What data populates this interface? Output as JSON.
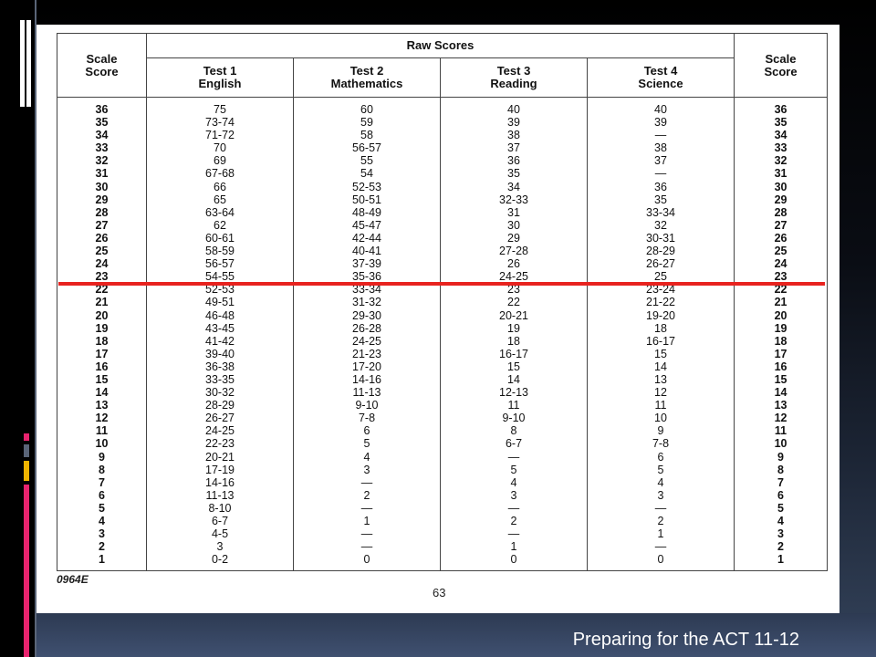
{
  "slide": {
    "footer_title": "Preparing for the ACT 11-12",
    "accent_colors": [
      "#e8236e",
      "#5a6578",
      "#f0b400",
      "#e8236e"
    ],
    "highlight_color": "#e8231f"
  },
  "table": {
    "group_header": "Raw Scores",
    "headers": {
      "scale_left": [
        "Scale",
        "Score"
      ],
      "test1": [
        "Test 1",
        "English"
      ],
      "test2": [
        "Test 2",
        "Mathematics"
      ],
      "test3": [
        "Test 3",
        "Reading"
      ],
      "test4": [
        "Test 4",
        "Science"
      ],
      "scale_right": [
        "Scale",
        "Score"
      ]
    },
    "scale": [
      "36",
      "35",
      "34",
      "33",
      "32",
      "31",
      "30",
      "29",
      "28",
      "27",
      "26",
      "25",
      "24",
      "23",
      "22",
      "21",
      "20",
      "19",
      "18",
      "17",
      "16",
      "15",
      "14",
      "13",
      "12",
      "11",
      "10",
      "9",
      "8",
      "7",
      "6",
      "5",
      "4",
      "3",
      "2",
      "1"
    ],
    "english": [
      "75",
      "73-74",
      "71-72",
      "70",
      "69",
      "67-68",
      "66",
      "65",
      "63-64",
      "62",
      "60-61",
      "58-59",
      "56-57",
      "54-55",
      "52-53",
      "49-51",
      "46-48",
      "43-45",
      "41-42",
      "39-40",
      "36-38",
      "33-35",
      "30-32",
      "28-29",
      "26-27",
      "24-25",
      "22-23",
      "20-21",
      "17-19",
      "14-16",
      "11-13",
      "8-10",
      "6-7",
      "4-5",
      "3",
      "0-2"
    ],
    "mathematics": [
      "60",
      "59",
      "58",
      "56-57",
      "55",
      "54",
      "52-53",
      "50-51",
      "48-49",
      "45-47",
      "42-44",
      "40-41",
      "37-39",
      "35-36",
      "33-34",
      "31-32",
      "29-30",
      "26-28",
      "24-25",
      "21-23",
      "17-20",
      "14-16",
      "11-13",
      "9-10",
      "7-8",
      "6",
      "5",
      "4",
      "3",
      "—",
      "2",
      "—",
      "1",
      "—",
      "—",
      "0"
    ],
    "reading": [
      "40",
      "39",
      "38",
      "37",
      "36",
      "35",
      "34",
      "32-33",
      "31",
      "30",
      "29",
      "27-28",
      "26",
      "24-25",
      "23",
      "22",
      "20-21",
      "19",
      "18",
      "16-17",
      "15",
      "14",
      "12-13",
      "11",
      "9-10",
      "8",
      "6-7",
      "—",
      "5",
      "4",
      "3",
      "—",
      "2",
      "—",
      "1",
      "0"
    ],
    "science": [
      "40",
      "39",
      "—",
      "38",
      "37",
      "—",
      "36",
      "35",
      "33-34",
      "32",
      "30-31",
      "28-29",
      "26-27",
      "25",
      "23-24",
      "21-22",
      "19-20",
      "18",
      "16-17",
      "15",
      "14",
      "13",
      "12",
      "11",
      "10",
      "9",
      "7-8",
      "6",
      "5",
      "4",
      "3",
      "—",
      "2",
      "1",
      "—",
      "0"
    ],
    "footnote": "0964E",
    "page_number": "63"
  }
}
